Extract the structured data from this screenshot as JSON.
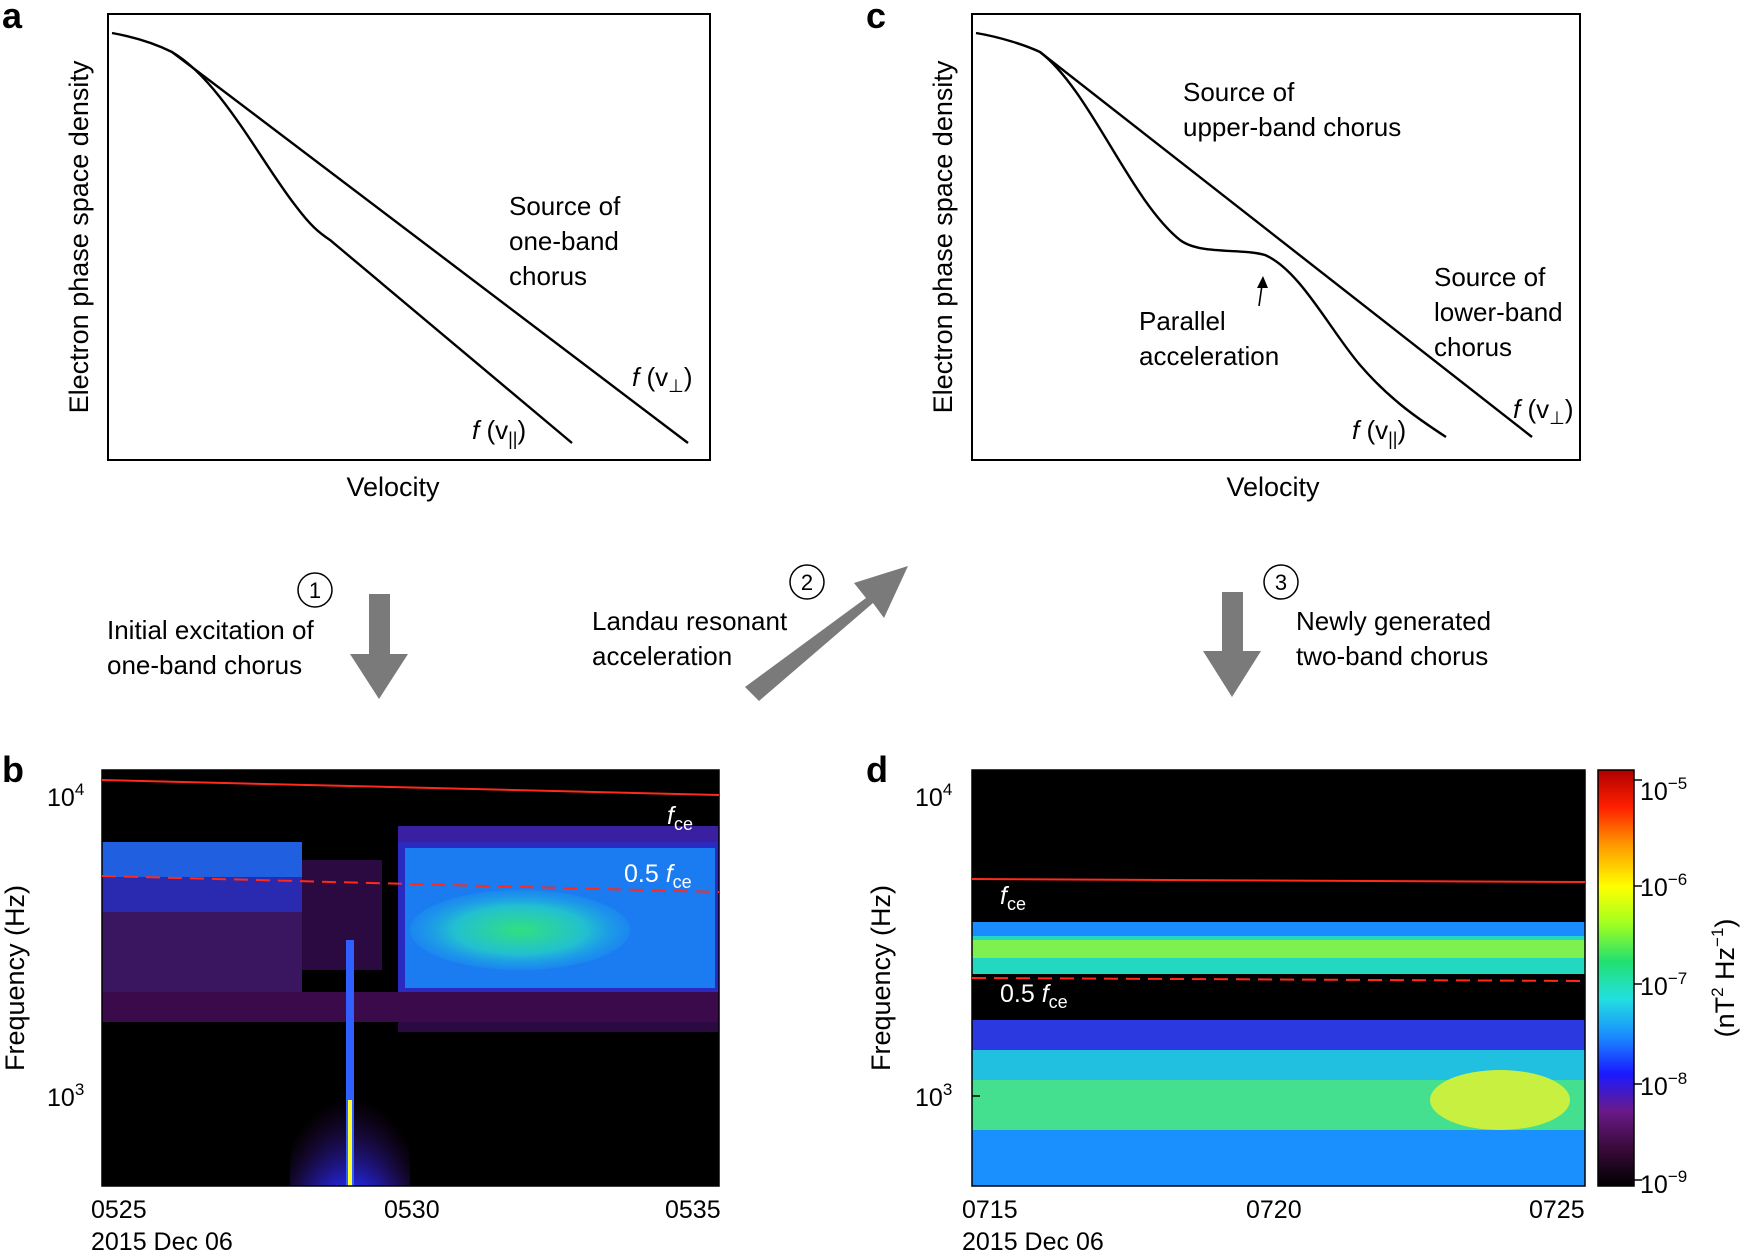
{
  "panels": {
    "a": {
      "letter": "a",
      "ylabel": "Electron phase space density",
      "xlabel": "Velocity",
      "source_text": [
        "Source of",
        "one-band",
        "chorus"
      ],
      "curve_par": {
        "f": "f",
        "open": " (v",
        "sub": "||",
        "close": ")"
      },
      "curve_perp": {
        "f": "f",
        "open": " (v",
        "sub": "⊥",
        "close": ")"
      }
    },
    "c": {
      "letter": "c",
      "ylabel": "Electron phase space density",
      "xlabel": "Velocity",
      "upper_text": [
        "Source of",
        "upper-band chorus"
      ],
      "lower_text": [
        "Source of",
        "lower-band",
        "chorus"
      ],
      "parallel_text": [
        "Parallel",
        "acceleration"
      ],
      "curve_par": {
        "f": "f",
        "open": " (v",
        "sub": "||",
        "close": ")"
      },
      "curve_perp": {
        "f": "f",
        "open": " (v",
        "sub": "⊥",
        "close": ")"
      }
    },
    "b": {
      "letter": "b",
      "ylabel": "Frequency (Hz)",
      "ytick_base": "10",
      "ytick_hi_exp": "4",
      "ytick_lo_exp": "3",
      "xticks": [
        "0525",
        "0530",
        "0535"
      ],
      "date": "2015 Dec 06",
      "fce": {
        "f": "f",
        "sub": "ce"
      },
      "half_fce": {
        "pre": "0.5 ",
        "f": "f",
        "sub": "ce"
      }
    },
    "d": {
      "letter": "d",
      "ylabel": "Frequency (Hz)",
      "ytick_base": "10",
      "ytick_hi_exp": "4",
      "ytick_lo_exp": "3",
      "xticks": [
        "0715",
        "0720",
        "0725"
      ],
      "date": "2015 Dec 06",
      "fce": {
        "f": "f",
        "sub": "ce"
      },
      "half_fce": {
        "pre": "0.5 ",
        "f": "f",
        "sub": "ce"
      }
    }
  },
  "steps": {
    "s1": {
      "num": "1",
      "text": [
        "Initial excitation of",
        "one-band chorus"
      ]
    },
    "s2": {
      "num": "2",
      "text": [
        "Landau resonant",
        "acceleration"
      ]
    },
    "s3": {
      "num": "3",
      "text": [
        "Newly generated",
        "two-band chorus"
      ]
    }
  },
  "colorbar": {
    "base": "10",
    "exps": [
      "−5",
      "−6",
      "−7",
      "−8",
      "−9"
    ],
    "label": {
      "pre": "(nT",
      "sup1": "2",
      "mid": " Hz",
      "sup2": "−1",
      "post": ")"
    },
    "colors": [
      "#000000",
      "#3a0a3a",
      "#6a1a8a",
      "#1a1aff",
      "#1a8cff",
      "#22e0e0",
      "#22e070",
      "#a0ff20",
      "#ffff00",
      "#ff9900",
      "#ff2000",
      "#b00000"
    ]
  },
  "colors": {
    "arrow": "#7a7a7a",
    "fce_line": "#ff2a1a",
    "half_fce_line": "#ff2a1a"
  }
}
